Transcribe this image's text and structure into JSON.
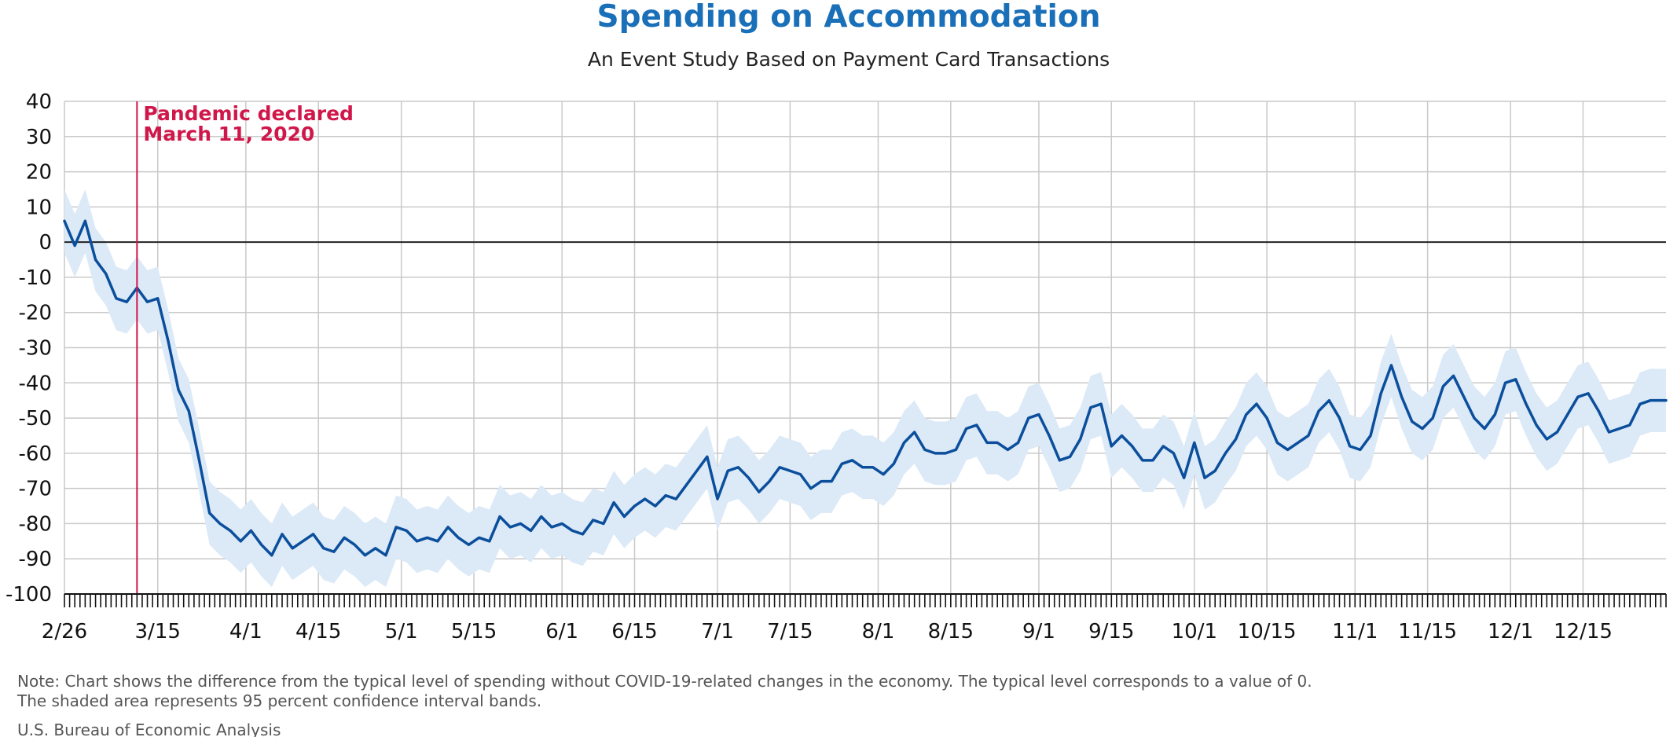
{
  "chart_data": {
    "type": "line",
    "title": "Spending on Accommodation",
    "subtitle": "An Event Study Based on Payment Card Transactions",
    "xlabel": "",
    "ylabel": "",
    "ylim": [
      -100,
      40
    ],
    "y_ticks": [
      "40",
      "30",
      "20",
      "10",
      "0",
      "-10",
      "-20",
      "-30",
      "-40",
      "-50",
      "-60",
      "-70",
      "-80",
      "-90",
      "-100"
    ],
    "x_range": [
      "2020-02-26",
      "2020-12-31"
    ],
    "x_ticks": [
      {
        "date": "2020-02-26",
        "label": "2/26"
      },
      {
        "date": "2020-03-15",
        "label": "3/15"
      },
      {
        "date": "2020-04-01",
        "label": "4/1"
      },
      {
        "date": "2020-04-15",
        "label": "4/15"
      },
      {
        "date": "2020-05-01",
        "label": "5/1"
      },
      {
        "date": "2020-05-15",
        "label": "5/15"
      },
      {
        "date": "2020-06-01",
        "label": "6/1"
      },
      {
        "date": "2020-06-15",
        "label": "6/15"
      },
      {
        "date": "2020-07-01",
        "label": "7/1"
      },
      {
        "date": "2020-07-15",
        "label": "7/15"
      },
      {
        "date": "2020-08-01",
        "label": "8/1"
      },
      {
        "date": "2020-08-15",
        "label": "8/15"
      },
      {
        "date": "2020-09-01",
        "label": "9/1"
      },
      {
        "date": "2020-09-15",
        "label": "9/15"
      },
      {
        "date": "2020-10-01",
        "label": "10/1"
      },
      {
        "date": "2020-10-15",
        "label": "10/15"
      },
      {
        "date": "2020-11-01",
        "label": "11/1"
      },
      {
        "date": "2020-11-15",
        "label": "11/15"
      },
      {
        "date": "2020-12-01",
        "label": "12/1"
      },
      {
        "date": "2020-12-15",
        "label": "12/15"
      }
    ],
    "grid": true,
    "annotation": {
      "date": "2020-03-11",
      "line1": "Pandemic declared",
      "line2": "March 11, 2020",
      "color": "#d0174a"
    },
    "line_color": "#0b4f9c",
    "band_color": "#dce9f7",
    "series": [
      {
        "points": [
          [
            "2020-02-26",
            6
          ],
          [
            "2020-02-28",
            -1
          ],
          [
            "2020-03-01",
            6
          ],
          [
            "2020-03-03",
            -5
          ],
          [
            "2020-03-05",
            -9
          ],
          [
            "2020-03-07",
            -16
          ],
          [
            "2020-03-09",
            -17
          ],
          [
            "2020-03-11",
            -13
          ],
          [
            "2020-03-13",
            -17
          ],
          [
            "2020-03-15",
            -16
          ],
          [
            "2020-03-17",
            -28
          ],
          [
            "2020-03-19",
            -42
          ],
          [
            "2020-03-21",
            -48
          ],
          [
            "2020-03-23",
            -62
          ],
          [
            "2020-03-25",
            -77
          ],
          [
            "2020-03-27",
            -80
          ],
          [
            "2020-03-29",
            -82
          ],
          [
            "2020-03-31",
            -85
          ],
          [
            "2020-04-02",
            -82
          ],
          [
            "2020-04-04",
            -86
          ],
          [
            "2020-04-06",
            -89
          ],
          [
            "2020-04-08",
            -83
          ],
          [
            "2020-04-10",
            -87
          ],
          [
            "2020-04-12",
            -85
          ],
          [
            "2020-04-14",
            -83
          ],
          [
            "2020-04-16",
            -87
          ],
          [
            "2020-04-18",
            -88
          ],
          [
            "2020-04-20",
            -84
          ],
          [
            "2020-04-22",
            -86
          ],
          [
            "2020-04-24",
            -89
          ],
          [
            "2020-04-26",
            -87
          ],
          [
            "2020-04-28",
            -89
          ],
          [
            "2020-04-30",
            -81
          ],
          [
            "2020-05-02",
            -82
          ],
          [
            "2020-05-04",
            -85
          ],
          [
            "2020-05-06",
            -84
          ],
          [
            "2020-05-08",
            -85
          ],
          [
            "2020-05-10",
            -81
          ],
          [
            "2020-05-12",
            -84
          ],
          [
            "2020-05-14",
            -86
          ],
          [
            "2020-05-16",
            -84
          ],
          [
            "2020-05-18",
            -85
          ],
          [
            "2020-05-20",
            -78
          ],
          [
            "2020-05-22",
            -81
          ],
          [
            "2020-05-24",
            -80
          ],
          [
            "2020-05-26",
            -82
          ],
          [
            "2020-05-28",
            -78
          ],
          [
            "2020-05-30",
            -81
          ],
          [
            "2020-06-01",
            -80
          ],
          [
            "2020-06-03",
            -82
          ],
          [
            "2020-06-05",
            -83
          ],
          [
            "2020-06-07",
            -79
          ],
          [
            "2020-06-09",
            -80
          ],
          [
            "2020-06-11",
            -74
          ],
          [
            "2020-06-13",
            -78
          ],
          [
            "2020-06-15",
            -75
          ],
          [
            "2020-06-17",
            -73
          ],
          [
            "2020-06-19",
            -75
          ],
          [
            "2020-06-21",
            -72
          ],
          [
            "2020-06-23",
            -73
          ],
          [
            "2020-06-25",
            -69
          ],
          [
            "2020-06-27",
            -65
          ],
          [
            "2020-06-29",
            -61
          ],
          [
            "2020-07-01",
            -73
          ],
          [
            "2020-07-03",
            -65
          ],
          [
            "2020-07-05",
            -64
          ],
          [
            "2020-07-07",
            -67
          ],
          [
            "2020-07-09",
            -71
          ],
          [
            "2020-07-11",
            -68
          ],
          [
            "2020-07-13",
            -64
          ],
          [
            "2020-07-15",
            -65
          ],
          [
            "2020-07-17",
            -66
          ],
          [
            "2020-07-19",
            -70
          ],
          [
            "2020-07-21",
            -68
          ],
          [
            "2020-07-23",
            -68
          ],
          [
            "2020-07-25",
            -63
          ],
          [
            "2020-07-27",
            -62
          ],
          [
            "2020-07-29",
            -64
          ],
          [
            "2020-07-31",
            -64
          ],
          [
            "2020-08-02",
            -66
          ],
          [
            "2020-08-04",
            -63
          ],
          [
            "2020-08-06",
            -57
          ],
          [
            "2020-08-08",
            -54
          ],
          [
            "2020-08-10",
            -59
          ],
          [
            "2020-08-12",
            -60
          ],
          [
            "2020-08-14",
            -60
          ],
          [
            "2020-08-16",
            -59
          ],
          [
            "2020-08-18",
            -53
          ],
          [
            "2020-08-20",
            -52
          ],
          [
            "2020-08-22",
            -57
          ],
          [
            "2020-08-24",
            -57
          ],
          [
            "2020-08-26",
            -59
          ],
          [
            "2020-08-28",
            -57
          ],
          [
            "2020-08-30",
            -50
          ],
          [
            "2020-09-01",
            -49
          ],
          [
            "2020-09-03",
            -55
          ],
          [
            "2020-09-05",
            -62
          ],
          [
            "2020-09-07",
            -61
          ],
          [
            "2020-09-09",
            -56
          ],
          [
            "2020-09-11",
            -47
          ],
          [
            "2020-09-13",
            -46
          ],
          [
            "2020-09-15",
            -58
          ],
          [
            "2020-09-17",
            -55
          ],
          [
            "2020-09-19",
            -58
          ],
          [
            "2020-09-21",
            -62
          ],
          [
            "2020-09-23",
            -62
          ],
          [
            "2020-09-25",
            -58
          ],
          [
            "2020-09-27",
            -60
          ],
          [
            "2020-09-29",
            -67
          ],
          [
            "2020-10-01",
            -57
          ],
          [
            "2020-10-03",
            -67
          ],
          [
            "2020-10-05",
            -65
          ],
          [
            "2020-10-07",
            -60
          ],
          [
            "2020-10-09",
            -56
          ],
          [
            "2020-10-11",
            -49
          ],
          [
            "2020-10-13",
            -46
          ],
          [
            "2020-10-15",
            -50
          ],
          [
            "2020-10-17",
            -57
          ],
          [
            "2020-10-19",
            -59
          ],
          [
            "2020-10-21",
            -57
          ],
          [
            "2020-10-23",
            -55
          ],
          [
            "2020-10-25",
            -48
          ],
          [
            "2020-10-27",
            -45
          ],
          [
            "2020-10-29",
            -50
          ],
          [
            "2020-10-31",
            -58
          ],
          [
            "2020-11-02",
            -59
          ],
          [
            "2020-11-04",
            -55
          ],
          [
            "2020-11-06",
            -43
          ],
          [
            "2020-11-08",
            -35
          ],
          [
            "2020-11-10",
            -44
          ],
          [
            "2020-11-12",
            -51
          ],
          [
            "2020-11-14",
            -53
          ],
          [
            "2020-11-16",
            -50
          ],
          [
            "2020-11-18",
            -41
          ],
          [
            "2020-11-20",
            -38
          ],
          [
            "2020-11-22",
            -44
          ],
          [
            "2020-11-24",
            -50
          ],
          [
            "2020-11-26",
            -53
          ],
          [
            "2020-11-28",
            -49
          ],
          [
            "2020-11-30",
            -40
          ],
          [
            "2020-12-02",
            -39
          ],
          [
            "2020-12-04",
            -46
          ],
          [
            "2020-12-06",
            -52
          ],
          [
            "2020-12-08",
            -56
          ],
          [
            "2020-12-10",
            -54
          ],
          [
            "2020-12-12",
            -49
          ],
          [
            "2020-12-14",
            -44
          ],
          [
            "2020-12-16",
            -43
          ],
          [
            "2020-12-18",
            -48
          ],
          [
            "2020-12-20",
            -54
          ],
          [
            "2020-12-22",
            -53
          ],
          [
            "2020-12-24",
            -52
          ],
          [
            "2020-12-26",
            -46
          ],
          [
            "2020-12-28",
            -45
          ],
          [
            "2020-12-31",
            -45
          ]
        ]
      }
    ]
  },
  "note_line1": "Note: Chart shows the difference from the typical level of spending without COVID-19-related changes in the economy. The typical level corresponds to a value of 0.",
  "note_line2": "The shaded area represents 95 percent confidence interval bands.",
  "source": "U.S. Bureau of Economic Analysis"
}
